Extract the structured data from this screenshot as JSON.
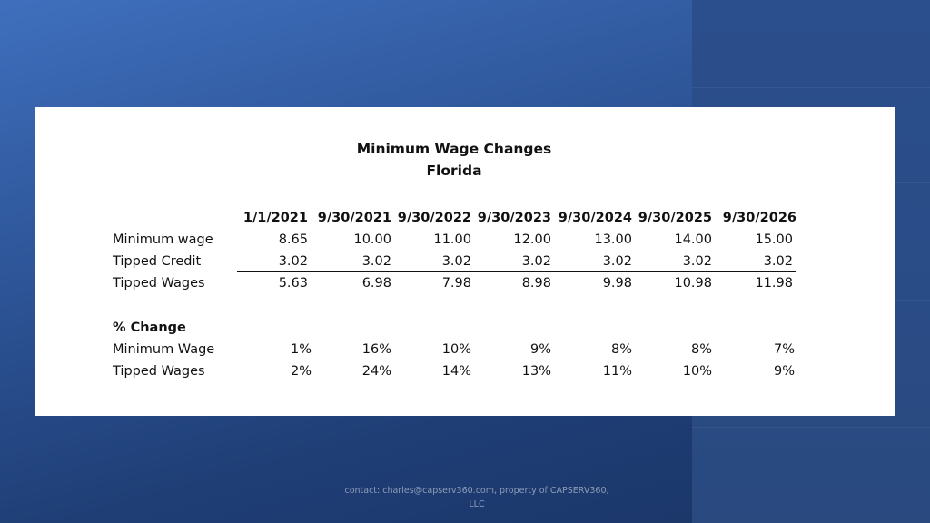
{
  "title": {
    "line1": "Minimum Wage Changes",
    "line2": "Florida"
  },
  "table": {
    "columns": [
      "1/1/2021",
      "9/30/2021",
      "9/30/2022",
      "9/30/2023",
      "9/30/2024",
      "9/30/2025",
      "9/30/2026"
    ],
    "rows": [
      {
        "label": "Minimum wage",
        "values": [
          "8.65",
          "10.00",
          "11.00",
          "12.00",
          "13.00",
          "14.00",
          "15.00"
        ]
      },
      {
        "label": "Tipped Credit",
        "values": [
          "3.02",
          "3.02",
          "3.02",
          "3.02",
          "3.02",
          "3.02",
          "3.02"
        ]
      },
      {
        "label": "Tipped Wages",
        "values": [
          "5.63",
          "6.98",
          "7.98",
          "8.98",
          "9.98",
          "10.98",
          "11.98"
        ]
      }
    ],
    "pct_section": "% Change",
    "pct_rows": [
      {
        "label": "Minimum Wage",
        "values": [
          "1%",
          "16%",
          "10%",
          "9%",
          "8%",
          "8%",
          "7%"
        ]
      },
      {
        "label": "Tipped Wages",
        "values": [
          "2%",
          "24%",
          "14%",
          "13%",
          "11%",
          "10%",
          "9%"
        ]
      }
    ]
  },
  "footer": {
    "line1": "contact: charles@capserv360.com, property of CAPSERV360,",
    "line2": "LLC"
  }
}
